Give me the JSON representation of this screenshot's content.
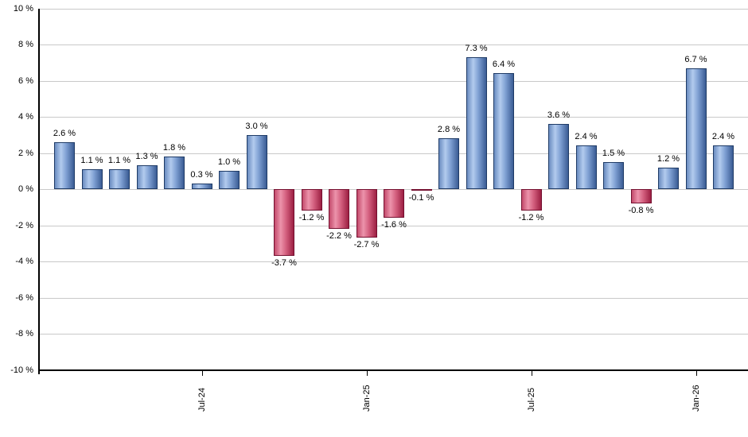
{
  "chart": {
    "background": "#ffffff",
    "axis_color": "#000000",
    "grid_color": "#c9c9c9",
    "label_color": "#000000",
    "positive_bar": {
      "border": "#1f3b66",
      "gradient": [
        "#6a8cc0",
        "#b2cbee",
        "#7e9fd2",
        "#3a5c94"
      ]
    },
    "negative_bar": {
      "border": "#741030",
      "gradient": [
        "#c34a6b",
        "#ec93ab",
        "#d4607f",
        "#9c1f42"
      ]
    }
  },
  "chart_data": {
    "type": "bar",
    "title": "",
    "xlabel": "",
    "ylabel": "",
    "values": [
      2.6,
      1.1,
      1.1,
      1.3,
      1.8,
      0.3,
      1.0,
      3.0,
      -3.7,
      -1.2,
      -2.2,
      -2.7,
      -1.6,
      -0.1,
      2.8,
      7.3,
      6.4,
      -1.2,
      3.6,
      2.4,
      1.5,
      -0.8,
      1.2,
      6.7,
      2.4
    ],
    "bar_labels": [
      "2.6 %",
      "1.1 %",
      "1.1 %",
      "1.3 %",
      "1.8 %",
      "0.3 %",
      "1.0 %",
      "3.0 %",
      "-3.7 %",
      "-1.2 %",
      "-2.2 %",
      "-2.7 %",
      "-1.6 %",
      "-0.1 %",
      "2.8 %",
      "7.3 %",
      "6.4 %",
      "-1.2 %",
      "3.6 %",
      "2.4 %",
      "1.5 %",
      "-0.8 %",
      "1.2 %",
      "6.7 %",
      "2.4 %"
    ],
    "x_ticks": [
      {
        "label": "Jul-24",
        "bar_index": 5
      },
      {
        "label": "Jan-25",
        "bar_index": 11
      },
      {
        "label": "Jul-25",
        "bar_index": 17
      },
      {
        "label": "Jan-26",
        "bar_index": 23
      }
    ],
    "y_tick_labels": [
      "10 %",
      "8 %",
      "6 %",
      "4 %",
      "2 %",
      "0 %",
      "-2 %",
      "-4 %",
      "-6 %",
      "-8 %",
      "-10 %"
    ],
    "ylim": [
      -10,
      10
    ],
    "y_tick_step": 2,
    "grid": true,
    "legend": false,
    "color_rule": "positive bars blue, negative bars red"
  }
}
